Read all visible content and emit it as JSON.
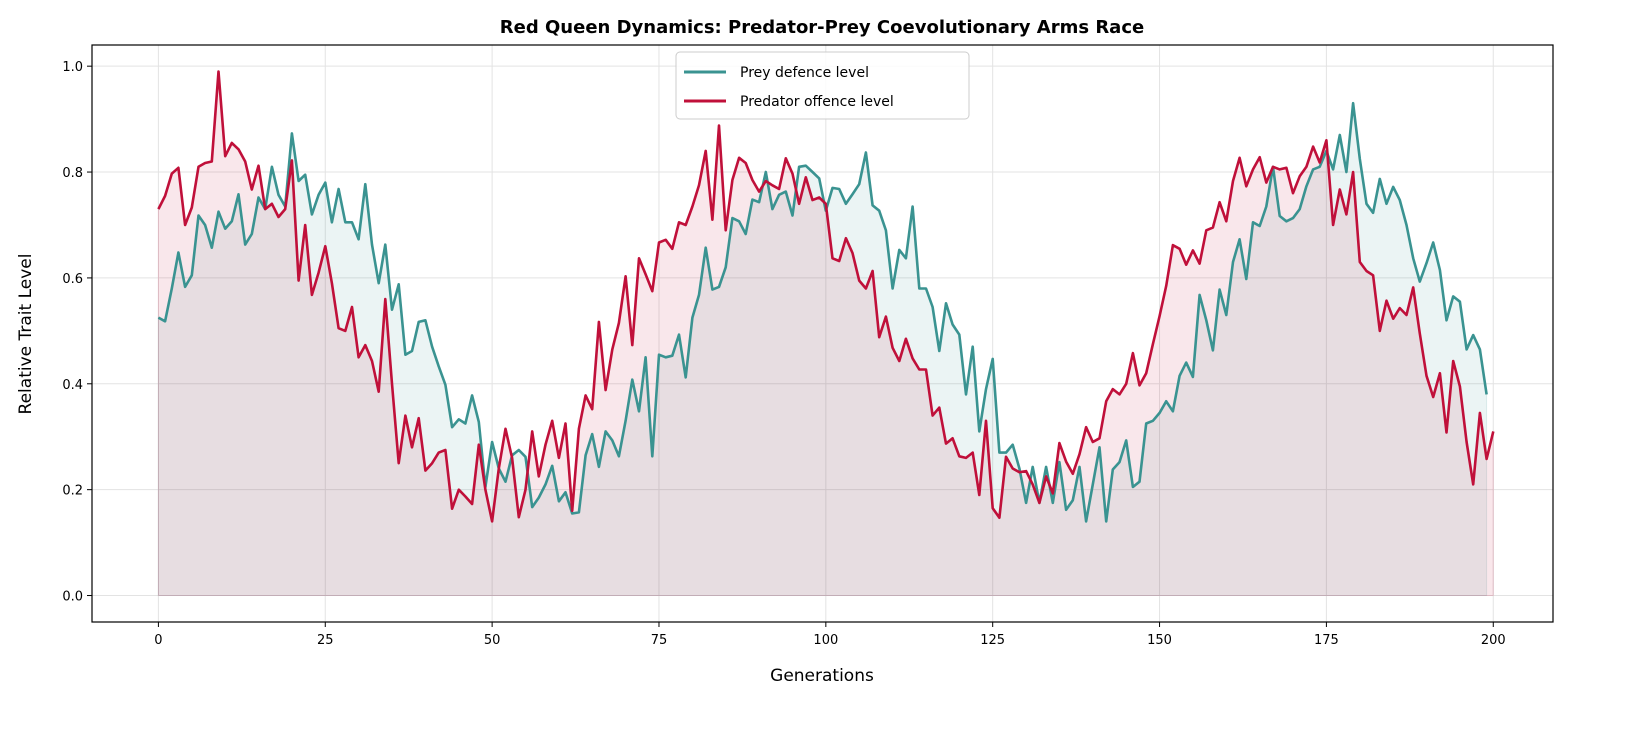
{
  "chart_data": {
    "type": "line",
    "title": "Red Queen Dynamics: Predator-Prey Coevolutionary Arms Race",
    "xlabel": "Generations",
    "ylabel": "Relative Trait Level",
    "xlim": [
      -9.95,
      208.95
    ],
    "ylim": [
      -0.05,
      1.04
    ],
    "xticks": [
      0,
      25,
      50,
      75,
      100,
      125,
      150,
      175,
      200
    ],
    "yticks": [
      0.0,
      0.2,
      0.4,
      0.6,
      0.8,
      1.0
    ],
    "grid": true,
    "legend_position": "top-center",
    "fill_to_zero": true,
    "series": [
      {
        "name": "Prey defence level",
        "color": "#3a9391",
        "values": [
          0.525,
          0.518,
          0.58,
          0.648,
          0.583,
          0.605,
          0.718,
          0.7,
          0.657,
          0.725,
          0.693,
          0.707,
          0.758,
          0.663,
          0.683,
          0.752,
          0.73,
          0.81,
          0.757,
          0.735,
          0.873,
          0.783,
          0.795,
          0.72,
          0.757,
          0.78,
          0.705,
          0.768,
          0.705,
          0.705,
          0.673,
          0.777,
          0.663,
          0.59,
          0.663,
          0.54,
          0.588,
          0.455,
          0.462,
          0.517,
          0.52,
          0.47,
          0.433,
          0.398,
          0.318,
          0.333,
          0.325,
          0.378,
          0.328,
          0.205,
          0.29,
          0.24,
          0.215,
          0.265,
          0.275,
          0.262,
          0.167,
          0.185,
          0.21,
          0.245,
          0.178,
          0.195,
          0.155,
          0.157,
          0.265,
          0.305,
          0.243,
          0.31,
          0.293,
          0.263,
          0.33,
          0.408,
          0.348,
          0.45,
          0.263,
          0.455,
          0.45,
          0.453,
          0.493,
          0.412,
          0.525,
          0.568,
          0.657,
          0.578,
          0.583,
          0.62,
          0.713,
          0.707,
          0.683,
          0.748,
          0.743,
          0.8,
          0.73,
          0.757,
          0.763,
          0.718,
          0.81,
          0.812,
          0.8,
          0.788,
          0.727,
          0.77,
          0.768,
          0.74,
          0.758,
          0.777,
          0.837,
          0.737,
          0.727,
          0.69,
          0.58,
          0.653,
          0.637,
          0.735,
          0.58,
          0.58,
          0.545,
          0.462,
          0.552,
          0.512,
          0.493,
          0.38,
          0.47,
          0.31,
          0.39,
          0.447,
          0.27,
          0.27,
          0.285,
          0.24,
          0.175,
          0.243,
          0.175,
          0.243,
          0.175,
          0.252,
          0.162,
          0.18,
          0.243,
          0.14,
          0.21,
          0.28,
          0.14,
          0.238,
          0.252,
          0.293,
          0.205,
          0.215,
          0.325,
          0.33,
          0.345,
          0.367,
          0.348,
          0.415,
          0.44,
          0.413,
          0.568,
          0.52,
          0.463,
          0.578,
          0.53,
          0.63,
          0.673,
          0.598,
          0.705,
          0.698,
          0.735,
          0.81,
          0.717,
          0.707,
          0.713,
          0.73,
          0.773,
          0.805,
          0.81,
          0.84,
          0.805,
          0.87,
          0.8,
          0.93,
          0.825,
          0.74,
          0.723,
          0.787,
          0.74,
          0.772,
          0.747,
          0.7,
          0.637,
          0.593,
          0.628,
          0.667,
          0.615,
          0.52,
          0.565,
          0.555,
          0.465,
          0.492,
          0.465,
          0.38
        ]
      },
      {
        "name": "Predator offence level",
        "color": "#c0103a",
        "values": [
          0.73,
          0.755,
          0.797,
          0.808,
          0.7,
          0.733,
          0.81,
          0.817,
          0.82,
          0.99,
          0.83,
          0.855,
          0.843,
          0.82,
          0.767,
          0.812,
          0.73,
          0.74,
          0.715,
          0.73,
          0.822,
          0.595,
          0.7,
          0.568,
          0.61,
          0.66,
          0.59,
          0.505,
          0.5,
          0.545,
          0.45,
          0.473,
          0.443,
          0.385,
          0.56,
          0.4,
          0.25,
          0.34,
          0.28,
          0.335,
          0.236,
          0.25,
          0.27,
          0.275,
          0.164,
          0.2,
          0.187,
          0.173,
          0.285,
          0.2,
          0.14,
          0.24,
          0.315,
          0.26,
          0.148,
          0.2,
          0.31,
          0.225,
          0.285,
          0.33,
          0.26,
          0.325,
          0.16,
          0.315,
          0.378,
          0.352,
          0.517,
          0.388,
          0.465,
          0.515,
          0.603,
          0.473,
          0.637,
          0.607,
          0.575,
          0.667,
          0.672,
          0.655,
          0.705,
          0.7,
          0.735,
          0.775,
          0.84,
          0.71,
          0.888,
          0.69,
          0.785,
          0.827,
          0.817,
          0.785,
          0.763,
          0.783,
          0.775,
          0.768,
          0.826,
          0.797,
          0.74,
          0.79,
          0.747,
          0.752,
          0.74,
          0.637,
          0.632,
          0.675,
          0.647,
          0.595,
          0.58,
          0.613,
          0.488,
          0.527,
          0.468,
          0.443,
          0.485,
          0.448,
          0.427,
          0.427,
          0.34,
          0.355,
          0.287,
          0.297,
          0.263,
          0.26,
          0.27,
          0.19,
          0.33,
          0.165,
          0.147,
          0.262,
          0.24,
          0.233,
          0.235,
          0.21,
          0.175,
          0.225,
          0.193,
          0.288,
          0.253,
          0.23,
          0.267,
          0.318,
          0.29,
          0.297,
          0.367,
          0.39,
          0.38,
          0.4,
          0.458,
          0.397,
          0.42,
          0.475,
          0.528,
          0.585,
          0.662,
          0.655,
          0.625,
          0.652,
          0.627,
          0.69,
          0.695,
          0.743,
          0.707,
          0.783,
          0.827,
          0.773,
          0.805,
          0.828,
          0.78,
          0.81,
          0.805,
          0.808,
          0.76,
          0.792,
          0.81,
          0.848,
          0.818,
          0.86,
          0.7,
          0.767,
          0.72,
          0.8,
          0.63,
          0.613,
          0.605,
          0.5,
          0.557,
          0.523,
          0.543,
          0.53,
          0.582,
          0.495,
          0.415,
          0.375,
          0.42,
          0.308,
          0.443,
          0.395,
          0.29,
          0.21,
          0.345,
          0.258,
          0.31
        ]
      }
    ]
  }
}
